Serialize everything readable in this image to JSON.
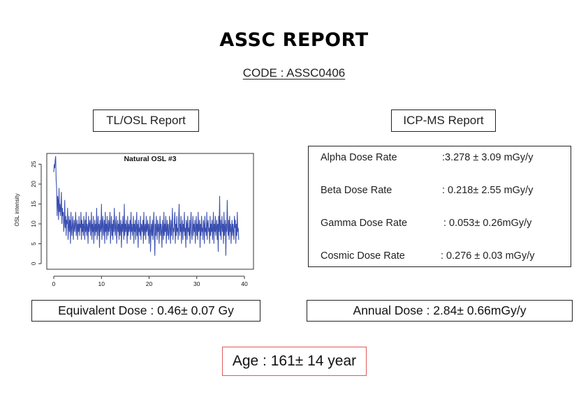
{
  "title": "ASSC REPORT",
  "code": "CODE : ASSC0406",
  "tl_osl_label": "TL/OSL Report",
  "icp_label": "ICP-MS Report",
  "icp_rows": [
    {
      "name": "Alpha Dose Rate",
      "value": ":3.278 ± 3.09 mGy/y"
    },
    {
      "name": "Beta Dose Rate",
      "value": ": 0.218± 2.55 mGy/y"
    },
    {
      "name": "Gamma Dose Rate",
      "value": ": 0.053± 0.26mGy/y"
    },
    {
      "name": "Cosmic Dose Rate",
      "value": ": 0.276 ± 0.03 mGy/y"
    }
  ],
  "equivalent_dose": "Equivalent Dose : 0.46± 0.07 Gy",
  "annual_dose": "Annual Dose : 2.84± 0.66mGy/y",
  "age": "Age : 161± 14 year",
  "colors": {
    "series": "#3a4fb0",
    "age_border": "#e05a5a"
  },
  "chart_data": {
    "type": "line",
    "title": "Natural OSL #3",
    "xlabel": "",
    "ylabel": "OSL intensity",
    "xlim": [
      0,
      40
    ],
    "ylim": [
      0,
      27
    ],
    "x_ticks": [
      0,
      10,
      20,
      30,
      40
    ],
    "y_ticks": [
      0,
      5,
      10,
      15,
      20,
      25
    ],
    "grid": false,
    "series": [
      {
        "x_start": 0,
        "x_step": 0.1,
        "values": [
          23,
          25,
          24,
          26,
          27,
          21,
          19,
          12,
          17,
          16,
          11,
          19,
          13,
          15,
          12,
          14,
          18,
          10,
          14,
          12,
          13,
          8,
          10,
          16,
          9,
          12,
          7,
          11,
          10,
          14,
          6,
          9,
          12,
          8,
          11,
          5,
          13,
          9,
          7,
          10,
          12,
          6,
          9,
          11,
          8,
          10,
          13,
          7,
          9,
          11,
          6,
          10,
          8,
          12,
          7,
          10,
          9,
          13,
          6,
          11,
          8,
          10,
          7,
          12,
          9,
          6,
          11,
          8,
          13,
          7,
          10,
          9,
          5,
          12,
          8,
          10,
          11,
          7,
          9,
          13,
          6,
          10,
          8,
          12,
          5,
          9,
          11,
          7,
          10,
          8,
          14,
          6,
          9,
          12,
          7,
          10,
          4,
          11,
          8,
          9,
          15,
          6,
          10,
          12,
          7,
          9,
          11,
          5,
          13,
          8,
          10,
          6,
          12,
          9,
          7,
          11,
          8,
          10,
          13,
          5,
          9,
          12,
          7,
          10,
          6,
          11,
          8,
          14,
          9,
          7,
          10,
          12,
          5,
          9,
          11,
          8,
          10,
          6,
          13,
          7,
          9,
          11,
          4,
          10,
          8,
          12,
          9,
          6,
          15,
          7,
          10,
          8,
          11,
          9,
          5,
          12,
          7,
          10,
          8,
          9,
          11,
          6,
          13,
          8,
          10,
          7,
          9,
          12,
          5,
          10,
          8,
          11,
          6,
          9,
          13,
          7,
          10,
          4,
          11,
          8,
          9,
          7,
          12,
          6,
          10,
          9,
          8,
          11,
          5,
          13,
          7,
          9,
          10,
          6,
          12,
          8,
          9,
          11,
          7,
          10,
          5,
          9,
          12,
          3,
          8,
          10,
          7,
          11,
          6,
          9,
          13,
          8,
          2,
          10,
          7,
          12,
          9,
          6,
          11,
          8,
          10,
          5,
          9,
          12,
          7,
          10,
          8,
          4,
          11,
          9,
          6,
          13,
          7,
          10,
          8,
          12,
          5,
          9,
          11,
          7,
          10,
          6,
          8,
          12,
          9,
          5,
          11,
          7,
          10,
          14,
          6,
          9,
          8,
          11,
          13,
          5,
          10,
          7,
          12,
          8,
          9,
          6,
          11,
          15,
          7,
          10,
          8,
          12,
          5,
          9,
          11,
          6,
          10,
          8,
          13,
          7,
          9,
          4,
          11,
          10,
          6,
          12,
          8,
          9,
          7,
          11,
          5,
          10,
          13,
          8,
          6,
          9,
          12,
          7,
          10,
          8,
          11,
          5,
          9,
          12,
          7,
          10,
          6,
          13,
          8,
          9,
          11,
          4,
          10,
          7,
          12,
          8,
          9,
          6,
          11,
          10,
          5,
          12,
          8,
          9,
          7,
          13,
          6,
          10,
          11,
          8,
          9,
          5,
          12,
          7,
          10,
          8,
          11,
          6,
          9,
          13,
          5,
          10,
          8,
          12,
          7,
          9,
          11,
          6,
          10,
          3,
          12,
          8,
          17,
          7,
          11,
          6,
          9,
          12,
          8,
          10,
          5,
          13,
          7,
          9,
          11,
          2,
          10,
          8,
          16,
          9,
          7,
          11,
          6,
          12,
          8,
          10,
          5,
          9,
          11,
          7,
          10,
          8,
          6,
          12,
          9,
          11,
          5,
          10,
          7,
          13,
          8,
          9,
          6
        ]
      }
    ]
  }
}
